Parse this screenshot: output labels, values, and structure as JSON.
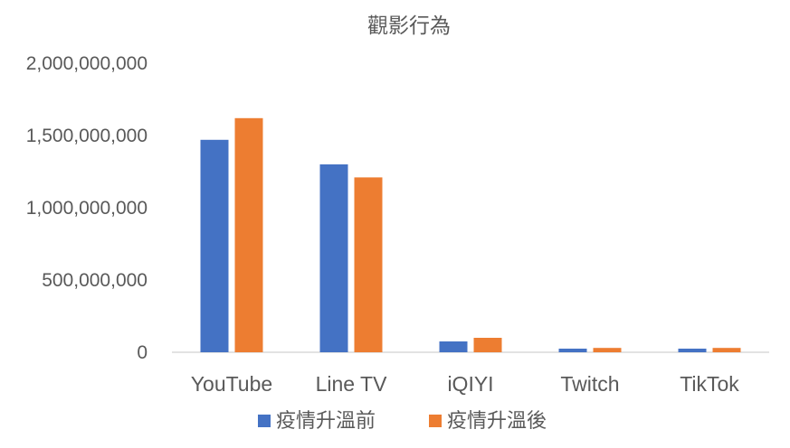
{
  "chart_data": {
    "type": "bar",
    "title": "觀影行為",
    "categories": [
      "YouTube",
      "Line TV",
      "iQIYI",
      "Twitch",
      "TikTok"
    ],
    "series": [
      {
        "name": "疫情升溫前",
        "color": "#4472C4",
        "values": [
          1470000000,
          1300000000,
          75000000,
          25000000,
          25000000
        ]
      },
      {
        "name": "疫情升溫後",
        "color": "#ED7D31",
        "values": [
          1620000000,
          1210000000,
          100000000,
          30000000,
          30000000
        ]
      }
    ],
    "ylim": [
      0,
      2000000000
    ],
    "yticks": [
      "0",
      "500,000,000",
      "1,000,000,000",
      "1,500,000,000",
      "2,000,000,000"
    ],
    "grid": false,
    "legend": "bottom"
  }
}
